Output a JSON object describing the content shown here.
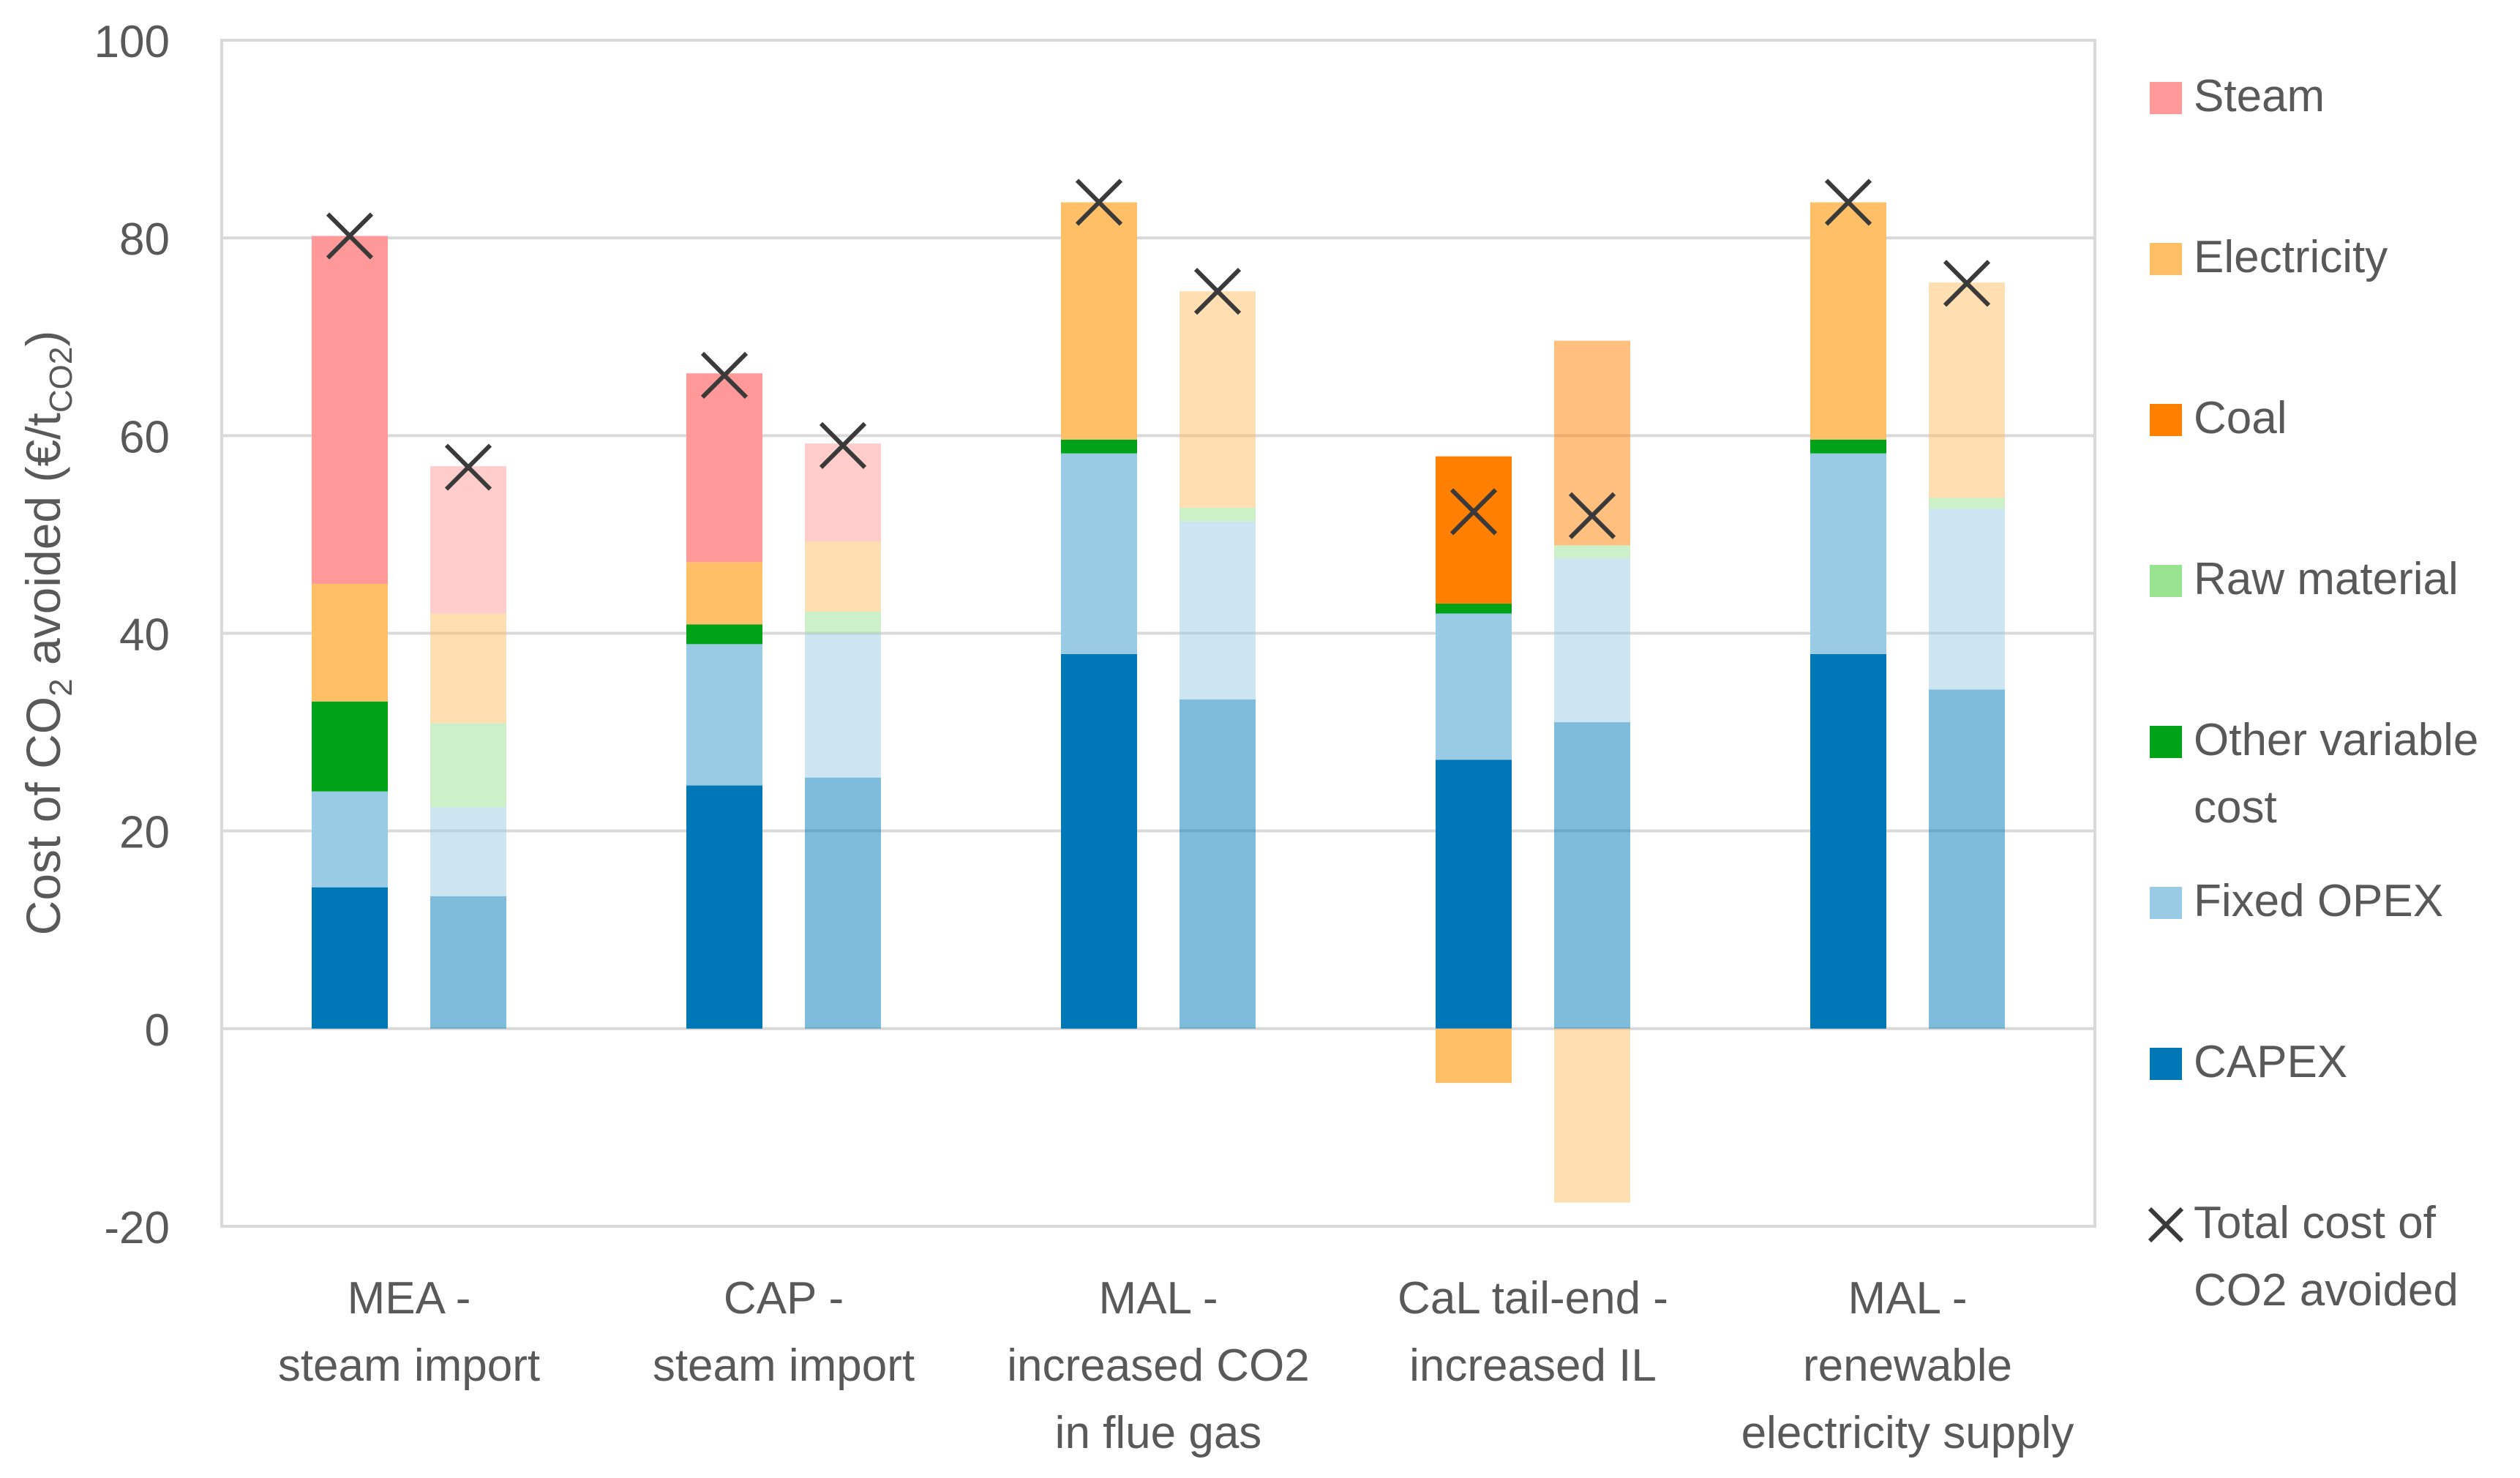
{
  "chart_data": {
    "type": "bar",
    "stacked": true,
    "title": "",
    "ylabel": {
      "prefix": "Cost of CO",
      "sub1": "2",
      "mid": " avoided (€/t",
      "sub2": "CO2",
      "suffix": ")"
    },
    "xlabel": "",
    "ylim": [
      -20,
      100
    ],
    "yticks": [
      -20,
      0,
      20,
      40,
      60,
      80,
      100
    ],
    "grid": true,
    "legend_position": "right",
    "categories": [
      {
        "lines": [
          "MEA -",
          "steam import"
        ]
      },
      {
        "lines": [
          "CAP -",
          "steam import"
        ]
      },
      {
        "lines": [
          "MAL -",
          "increased CO2",
          "in flue gas"
        ]
      },
      {
        "lines": [
          "CaL tail-end -",
          "increased IL"
        ]
      },
      {
        "lines": [
          "MAL -",
          "renewable",
          "electricity supply"
        ]
      }
    ],
    "series_order": [
      "CAPEX",
      "Fixed OPEX",
      "Other variable cost",
      "Raw material",
      "Coal",
      "Electricity",
      "Steam"
    ],
    "series_colors": {
      "Steam": "#FF9999",
      "Electricity": "#FFBF66",
      "Coal": "#FF7F00",
      "Raw material": "#99E28F",
      "Other variable cost": "#00A218",
      "Fixed OPEX": "#99CCE4",
      "CAPEX": "#0077B6"
    },
    "light_opacity": 0.5,
    "bars": [
      {
        "category": 0,
        "style": "dark",
        "values": {
          "CAPEX": 14.3,
          "Fixed OPEX": 9.7,
          "Other variable cost": 9.1,
          "Raw material": 0,
          "Coal": 0,
          "Electricity": 11.9,
          "Steam": 35.2
        },
        "total": 80.2
      },
      {
        "category": 0,
        "style": "light",
        "values": {
          "CAPEX": 13.4,
          "Fixed OPEX": 9.0,
          "Other variable cost": 0,
          "Raw material": 8.5,
          "Coal": 0,
          "Electricity": 11.1,
          "Steam": 14.9
        },
        "total": 56.8
      },
      {
        "category": 1,
        "style": "dark",
        "values": {
          "CAPEX": 24.6,
          "Fixed OPEX": 14.3,
          "Other variable cost": 2.0,
          "Raw material": 0,
          "Coal": 0,
          "Electricity": 6.3,
          "Steam": 19.1
        },
        "total": 66.1
      },
      {
        "category": 1,
        "style": "light",
        "values": {
          "CAPEX": 25.4,
          "Fixed OPEX": 14.6,
          "Other variable cost": 0,
          "Raw material": 2.2,
          "Coal": 0,
          "Electricity": 7.1,
          "Steam": 9.9
        },
        "total": 59.0
      },
      {
        "category": 2,
        "style": "dark",
        "values": {
          "CAPEX": 37.9,
          "Fixed OPEX": 20.3,
          "Other variable cost": 1.4,
          "Raw material": 0,
          "Coal": 0,
          "Electricity": 24.0,
          "Steam": 0
        },
        "total": 83.6
      },
      {
        "category": 2,
        "style": "light",
        "values": {
          "CAPEX": 33.3,
          "Fixed OPEX": 18.0,
          "Other variable cost": 0,
          "Raw material": 1.4,
          "Coal": 0,
          "Electricity": 21.9,
          "Steam": 0
        },
        "total": 74.6
      },
      {
        "category": 3,
        "style": "dark",
        "values": {
          "CAPEX": 27.2,
          "Fixed OPEX": 14.8,
          "Other variable cost": 1.0,
          "Raw material": 0,
          "Coal": 14.9,
          "Electricity": -5.5,
          "Steam": 0
        },
        "total": 52.3
      },
      {
        "category": 3,
        "style": "light",
        "values": {
          "CAPEX": 31.0,
          "Fixed OPEX": 16.6,
          "Other variable cost": 0,
          "Raw material": 1.3,
          "Coal": 20.7,
          "Electricity": -17.6,
          "Steam": 0
        },
        "total": 51.9
      },
      {
        "category": 4,
        "style": "dark",
        "values": {
          "CAPEX": 37.9,
          "Fixed OPEX": 20.3,
          "Other variable cost": 1.4,
          "Raw material": 0,
          "Coal": 0,
          "Electricity": 24.0,
          "Steam": 0
        },
        "total": 83.6
      },
      {
        "category": 4,
        "style": "light",
        "values": {
          "CAPEX": 34.3,
          "Fixed OPEX": 18.3,
          "Other variable cost": 0,
          "Raw material": 1.1,
          "Coal": 0,
          "Electricity": 21.8,
          "Steam": 0
        },
        "total": 75.4
      }
    ],
    "legend": [
      {
        "key": "Steam",
        "lines": [
          "Steam"
        ],
        "marker": "square"
      },
      {
        "key": "Electricity",
        "lines": [
          "Electricity"
        ],
        "marker": "square"
      },
      {
        "key": "Coal",
        "lines": [
          "Coal"
        ],
        "marker": "square"
      },
      {
        "key": "Raw material",
        "lines": [
          "Raw material"
        ],
        "marker": "square"
      },
      {
        "key": "Other variable cost",
        "lines": [
          "Other variable",
          "cost"
        ],
        "marker": "square"
      },
      {
        "key": "Fixed OPEX",
        "lines": [
          "Fixed OPEX"
        ],
        "marker": "square"
      },
      {
        "key": "CAPEX",
        "lines": [
          "CAPEX"
        ],
        "marker": "square"
      },
      {
        "key": "Total cost of CO2 avoided",
        "lines": [
          "Total cost of",
          "CO2 avoided"
        ],
        "marker": "cross"
      }
    ]
  }
}
